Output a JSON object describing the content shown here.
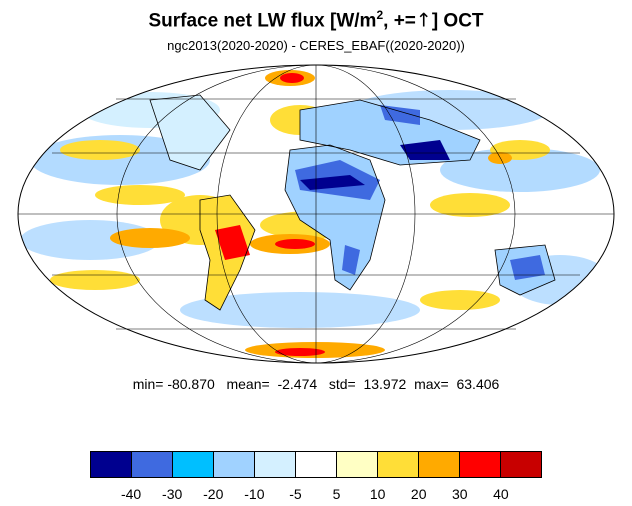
{
  "header": {
    "title_main": "Surface net LW flux [W/m",
    "title_sup": "2",
    "title_mid": ", +=",
    "title_arrow": "↑",
    "title_end": "]  OCT",
    "subtitle": "ngc2013(2020-2020) - CERES_EBAF((2020-2020))"
  },
  "map": {
    "projection": "Mollweide",
    "gridlines": true,
    "continent_outline_color": "#000000"
  },
  "stats": {
    "min_label": "min=",
    "min_value": "-80.870",
    "mean_label": "mean=",
    "mean_value": "-2.474",
    "std_label": "std=",
    "std_value": "13.972",
    "max_label": "max=",
    "max_value": "63.406"
  },
  "colorbar": {
    "colors": [
      "#00008f",
      "#3f6ae0",
      "#00bfff",
      "#a0d2ff",
      "#d4f0ff",
      "#ffffff",
      "#ffffc4",
      "#ffde37",
      "#ffaa00",
      "#ff0000",
      "#c80000"
    ],
    "labels": [
      "-40",
      "-30",
      "-20",
      "-10",
      "-5",
      "5",
      "10",
      "20",
      "30",
      "40"
    ]
  }
}
